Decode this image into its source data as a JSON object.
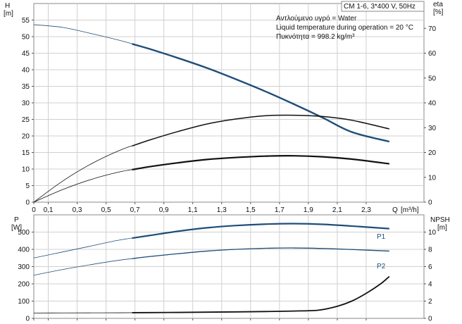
{
  "info": {
    "model": "CM 1-6, 3*400 V, 50Hz",
    "lines": [
      "Αντλούμενο υγρό = Water",
      "Liquid temperature during operation = 20 °C",
      "Πυκνότητα = 998.2 kg/m³"
    ]
  },
  "chart_data": [
    {
      "type": "line",
      "panel": "top",
      "ylabel": "H",
      "yunit": "[m]",
      "y2label": "eta",
      "y2unit": "[%]",
      "xlabel": "Q",
      "xunit": "[m³/h]",
      "xlim": [
        0,
        2.7
      ],
      "ylim": [
        0,
        60
      ],
      "y2lim": [
        0,
        80
      ],
      "xticks": [
        "0",
        "0,1",
        "0,3",
        "0,5",
        "0,7",
        "0,9",
        "1,1",
        "1,3",
        "1,5",
        "1,7",
        "1,9",
        "2,1",
        "2,3"
      ],
      "xtick_values": [
        0,
        0.1,
        0.3,
        0.5,
        0.7,
        0.9,
        1.1,
        1.3,
        1.5,
        1.7,
        1.9,
        2.1,
        2.3
      ],
      "yticks": [
        0,
        5,
        10,
        15,
        20,
        25,
        30,
        35,
        40,
        45,
        50,
        55
      ],
      "y2ticks": [
        0,
        10,
        20,
        30,
        40,
        50,
        60,
        70
      ],
      "grid": true,
      "series": [
        {
          "axis": "left",
          "color": "#1f4e79",
          "width": 2.4,
          "op_start": 0.68,
          "x": [
            0,
            0.2,
            0.4,
            0.6,
            0.8,
            1.0,
            1.2,
            1.4,
            1.6,
            1.8,
            2.0,
            2.2,
            2.46
          ],
          "y": [
            53.6,
            52.8,
            50.9,
            48.8,
            46.3,
            43.5,
            40.5,
            37.1,
            33.5,
            29.6,
            25.5,
            21.2,
            18.3
          ]
        },
        {
          "axis": "right",
          "color": "#111111",
          "width": 1.5,
          "op_start": 0.68,
          "x": [
            0,
            0.2,
            0.4,
            0.6,
            0.8,
            1.0,
            1.2,
            1.4,
            1.6,
            1.8,
            2.0,
            2.2,
            2.46
          ],
          "y": [
            0,
            8.5,
            15.5,
            21.0,
            25.0,
            28.5,
            31.5,
            33.5,
            34.8,
            35.0,
            34.5,
            33.0,
            29.5
          ]
        },
        {
          "axis": "left",
          "color": "#111111",
          "width": 2.2,
          "op_start": 0.68,
          "x": [
            0,
            0.2,
            0.4,
            0.6,
            0.8,
            1.0,
            1.2,
            1.4,
            1.6,
            1.8,
            2.0,
            2.2,
            2.46
          ],
          "y": [
            0,
            3.8,
            6.9,
            9.2,
            10.7,
            11.9,
            12.9,
            13.5,
            13.9,
            14.0,
            13.7,
            13.0,
            11.6
          ]
        }
      ]
    },
    {
      "type": "line",
      "panel": "bottom",
      "ylabel": "P",
      "yunit": "[W]",
      "y2label": "NPSH",
      "y2unit": "[m]",
      "xlim": [
        0,
        2.7
      ],
      "ylim": [
        0,
        600
      ],
      "y2lim": [
        0,
        12
      ],
      "yticks": [
        0,
        100,
        200,
        300,
        400,
        500
      ],
      "y2ticks": [
        0,
        2,
        4,
        6,
        8,
        10
      ],
      "grid": true,
      "series": [
        {
          "name": "P1",
          "axis": "left",
          "color": "#1f4e79",
          "width": 2.2,
          "op_start": 0.68,
          "x": [
            0,
            0.2,
            0.4,
            0.6,
            0.8,
            1.0,
            1.2,
            1.4,
            1.6,
            1.8,
            2.0,
            2.2,
            2.46
          ],
          "y": [
            350,
            385,
            420,
            455,
            480,
            505,
            525,
            538,
            546,
            549,
            545,
            535,
            520
          ]
        },
        {
          "name": "P2",
          "axis": "left",
          "color": "#1f4e79",
          "width": 1.3,
          "op_start": 0.68,
          "x": [
            0,
            0.2,
            0.4,
            0.6,
            0.8,
            1.0,
            1.2,
            1.4,
            1.6,
            1.8,
            2.0,
            2.2,
            2.46
          ],
          "y": [
            250,
            283,
            312,
            338,
            358,
            375,
            390,
            400,
            406,
            408,
            405,
            399,
            390
          ]
        },
        {
          "axis": "right",
          "color": "#111111",
          "width": 1.8,
          "op_start": 0.68,
          "x": [
            0,
            0.2,
            0.4,
            0.6,
            0.8,
            1.0,
            1.2,
            1.4,
            1.6,
            1.8,
            1.97,
            2.1,
            2.2,
            2.3,
            2.4,
            2.46
          ],
          "y": [
            0.62,
            0.63,
            0.64,
            0.65,
            0.67,
            0.69,
            0.72,
            0.75,
            0.79,
            0.85,
            0.95,
            1.4,
            2.0,
            2.9,
            4.0,
            4.85
          ]
        }
      ]
    }
  ]
}
